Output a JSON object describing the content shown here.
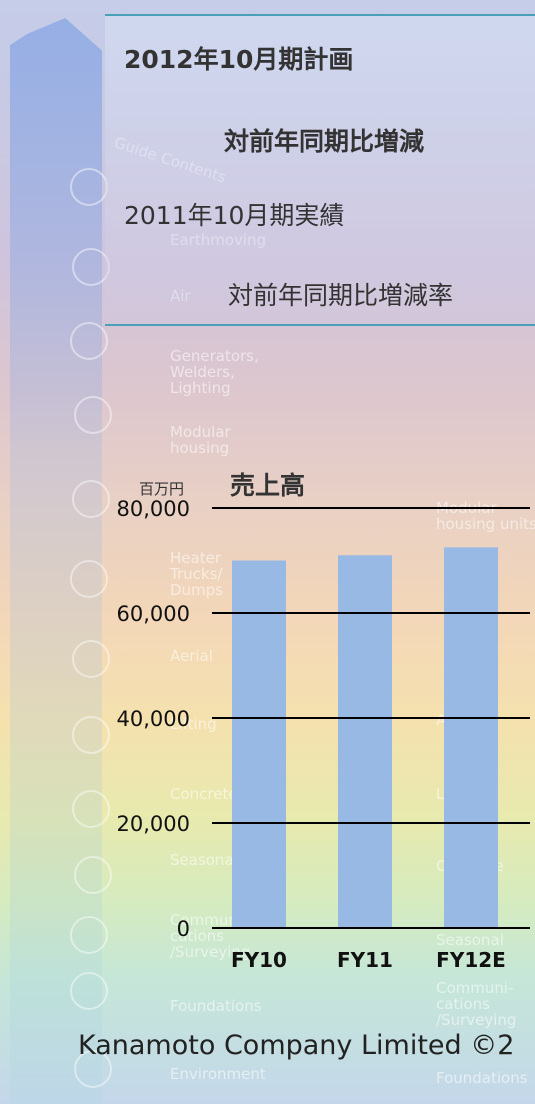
{
  "header": {
    "plan_label": "2012年10月期計画",
    "yoy_label": "対前年同期比増減",
    "actual_label": "2011年10月期実績",
    "yoy_rate_label": "対前年同期比増減率"
  },
  "background_labels": [
    "Guide Contents",
    "Earthmoving",
    "Air",
    "Generators,",
    "Welders,",
    "Lighting",
    "Modular",
    "housing",
    "Heater",
    "Trucks/",
    "Dumps",
    "Aerial",
    "Lifting",
    "Concrete",
    "Seasonal",
    "Communi-",
    "cations",
    "/Surveying",
    "Foundations",
    "Environment"
  ],
  "background_labels_right": [
    "Modular",
    "housing units",
    "Aerial",
    "Lifting",
    "Concrete",
    "Seasonal",
    "Communi-",
    "cations",
    "/Surveying",
    "Foundations"
  ],
  "chart_data": {
    "type": "bar",
    "title": "売上高",
    "unit": "百万円",
    "categories": [
      "FY10",
      "FY11",
      "FY12E"
    ],
    "values": [
      70000,
      71000,
      72500
    ],
    "ylim": [
      0,
      80000
    ],
    "yticks": [
      0,
      20000,
      40000,
      60000,
      80000
    ],
    "ytick_labels": [
      "0",
      "20,000",
      "40,000",
      "60,000",
      "80,000"
    ],
    "grid": true,
    "bar_color": "#98b9e3"
  },
  "footer": {
    "copyright": "Kanamoto Company Limited ©2"
  }
}
